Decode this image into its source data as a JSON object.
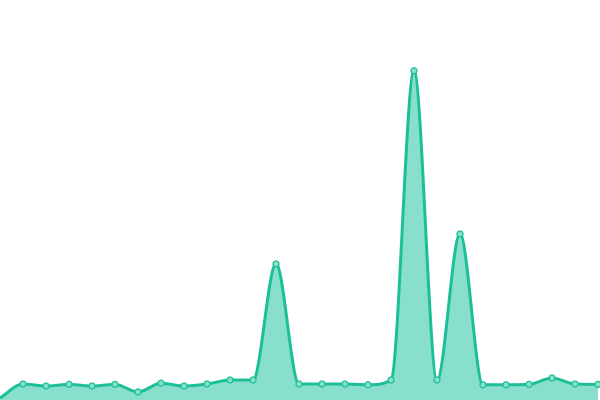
{
  "chart_data": {
    "type": "area",
    "title": "",
    "xlabel": "",
    "ylabel": "",
    "x": [
      0,
      1,
      2,
      3,
      4,
      5,
      6,
      7,
      8,
      9,
      10,
      11,
      12,
      13,
      14,
      15,
      16,
      17,
      18,
      19,
      20,
      21,
      22,
      23,
      24,
      25,
      26
    ],
    "values": [
      0.5,
      4,
      3.5,
      3.9,
      3.5,
      3.9,
      2,
      4.2,
      3.5,
      4,
      5,
      5,
      34,
      4,
      4,
      4,
      3.8,
      5,
      82.3,
      5,
      41.5,
      3.8,
      3.8,
      3.9,
      5.5,
      4,
      3.9
    ],
    "ylim": [
      0,
      100
    ],
    "grid": false,
    "axes_visible": false,
    "smooth": true,
    "markers": true,
    "colors": {
      "line": "#1dbf98",
      "fill": "#88e0cc",
      "marker_fill": "#88e0cc"
    }
  }
}
